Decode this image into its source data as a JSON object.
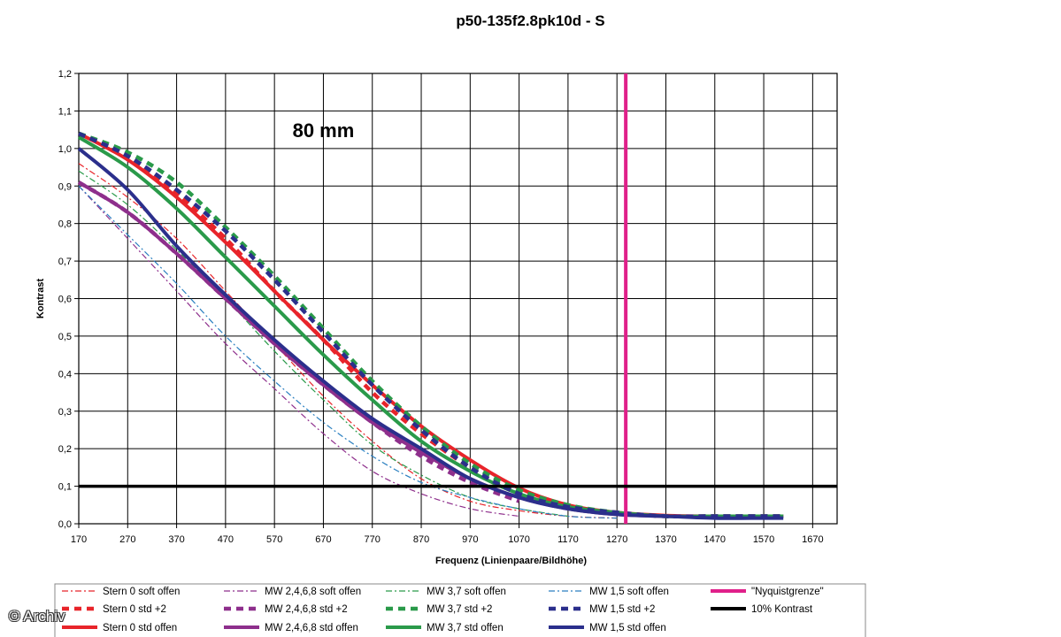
{
  "chart_data": {
    "type": "line",
    "title": "p50-135f2.8pk10d - S",
    "xlabel": "Frequenz (Linienpaare/Bildhöhe)",
    "ylabel": "Kontrast",
    "xlim": [
      170,
      1720
    ],
    "ylim": [
      0,
      1.2
    ],
    "xticks": [
      170,
      270,
      370,
      470,
      570,
      670,
      770,
      870,
      970,
      1070,
      1170,
      1270,
      1370,
      1470,
      1570,
      1670
    ],
    "yticks": [
      "0,0",
      "0,1",
      "0,2",
      "0,3",
      "0,4",
      "0,5",
      "0,6",
      "0,7",
      "0,8",
      "0,9",
      "1,0",
      "1,1",
      "1,2"
    ],
    "grid": true,
    "annotation": "80 mm",
    "series": [
      {
        "name": "Stern 0 soft offen",
        "color": "#e8242a",
        "style": "dashdot-thin",
        "x": [
          170,
          270,
          370,
          470,
          570,
          670,
          770,
          870,
          970,
          1070,
          1170,
          1270
        ],
        "y": [
          0.96,
          0.87,
          0.76,
          0.62,
          0.48,
          0.34,
          0.22,
          0.12,
          0.06,
          0.035,
          0.02,
          0.015
        ]
      },
      {
        "name": "Stern 0 std +2",
        "color": "#e8242a",
        "style": "dashed-thick",
        "x": [
          170,
          270,
          370,
          470,
          570,
          670,
          770,
          870,
          970,
          1070,
          1170,
          1270,
          1370,
          1470,
          1570,
          1610
        ],
        "y": [
          1.04,
          0.98,
          0.88,
          0.76,
          0.62,
          0.49,
          0.35,
          0.24,
          0.15,
          0.08,
          0.045,
          0.03,
          0.02,
          0.02,
          0.02,
          0.02
        ]
      },
      {
        "name": "Stern 0 std offen",
        "color": "#e8242a",
        "style": "solid-thick",
        "x": [
          170,
          270,
          370,
          470,
          570,
          670,
          770,
          870,
          970,
          1070,
          1170,
          1270,
          1370,
          1470,
          1570,
          1610
        ],
        "y": [
          1.04,
          0.97,
          0.87,
          0.75,
          0.62,
          0.49,
          0.37,
          0.26,
          0.17,
          0.095,
          0.05,
          0.03,
          0.022,
          0.02,
          0.02,
          0.02
        ]
      },
      {
        "name": "MW 2,4,6,8 soft offen",
        "color": "#8e2f8c",
        "style": "dashdot-thin",
        "x": [
          170,
          270,
          370,
          470,
          570,
          670,
          770,
          870,
          970,
          1070
        ],
        "y": [
          0.9,
          0.76,
          0.62,
          0.48,
          0.36,
          0.24,
          0.14,
          0.08,
          0.04,
          0.02
        ]
      },
      {
        "name": "MW 2,4,6,8 std +2",
        "color": "#8e2f8c",
        "style": "dashed-thick",
        "x": [
          170,
          270,
          370,
          470,
          570,
          670,
          770,
          870,
          970,
          1070
        ],
        "y": [
          0.91,
          0.83,
          0.72,
          0.6,
          0.48,
          0.37,
          0.27,
          0.18,
          0.11,
          0.06
        ]
      },
      {
        "name": "MW 2,4,6,8 std offen",
        "color": "#8e2f8c",
        "style": "solid-thick",
        "x": [
          170,
          270,
          370,
          470,
          570,
          670,
          770,
          870,
          970,
          1070,
          1170,
          1270,
          1370,
          1470,
          1570,
          1610
        ],
        "y": [
          0.91,
          0.83,
          0.72,
          0.6,
          0.48,
          0.37,
          0.27,
          0.19,
          0.12,
          0.07,
          0.04,
          0.025,
          0.02,
          0.02,
          0.02,
          0.02
        ]
      },
      {
        "name": "MW 3,7 soft offen",
        "color": "#2a9a4a",
        "style": "dashdot-thin",
        "x": [
          170,
          270,
          370,
          470,
          570,
          670,
          770,
          870,
          970,
          1070,
          1170
        ],
        "y": [
          0.94,
          0.85,
          0.73,
          0.6,
          0.46,
          0.33,
          0.21,
          0.13,
          0.07,
          0.04,
          0.02
        ]
      },
      {
        "name": "MW 3,7 std +2",
        "color": "#2a9a4a",
        "style": "dashed-thick",
        "x": [
          170,
          270,
          370,
          470,
          570,
          670,
          770,
          870,
          970,
          1070,
          1170,
          1270,
          1370,
          1470,
          1570,
          1610
        ],
        "y": [
          1.04,
          0.99,
          0.91,
          0.79,
          0.66,
          0.52,
          0.38,
          0.26,
          0.16,
          0.09,
          0.05,
          0.03,
          0.02,
          0.02,
          0.02,
          0.02
        ]
      },
      {
        "name": "MW 3,7 std offen",
        "color": "#2a9a4a",
        "style": "solid-thick",
        "x": [
          170,
          270,
          370,
          470,
          570,
          670,
          770,
          870,
          970,
          1070,
          1170,
          1270,
          1370,
          1470,
          1570,
          1610
        ],
        "y": [
          1.03,
          0.95,
          0.84,
          0.71,
          0.58,
          0.45,
          0.33,
          0.22,
          0.14,
          0.08,
          0.045,
          0.03,
          0.02,
          0.02,
          0.02,
          0.02
        ]
      },
      {
        "name": "MW 1,5 soft offen",
        "color": "#2a7fc0",
        "style": "dashdot-thin",
        "x": [
          170,
          270,
          370,
          470,
          570,
          670,
          770,
          870,
          970,
          1070,
          1170,
          1270
        ],
        "y": [
          0.9,
          0.77,
          0.64,
          0.5,
          0.38,
          0.27,
          0.18,
          0.11,
          0.07,
          0.04,
          0.02,
          0.015
        ]
      },
      {
        "name": "MW 1,5 std +2",
        "color": "#2b2f8c",
        "style": "dashed-thick",
        "x": [
          170,
          270,
          370,
          470,
          570,
          670,
          770,
          870,
          970,
          1070,
          1170,
          1270,
          1370,
          1470,
          1570,
          1610
        ],
        "y": [
          1.04,
          0.98,
          0.89,
          0.78,
          0.65,
          0.51,
          0.37,
          0.25,
          0.15,
          0.08,
          0.045,
          0.03,
          0.02,
          0.02,
          0.02,
          0.02
        ]
      },
      {
        "name": "MW 1,5 std offen",
        "color": "#2b2f8c",
        "style": "solid-thick",
        "x": [
          170,
          270,
          370,
          470,
          570,
          670,
          770,
          870,
          970,
          1070,
          1170,
          1270,
          1370,
          1470,
          1570,
          1610
        ],
        "y": [
          1.0,
          0.89,
          0.74,
          0.61,
          0.49,
          0.38,
          0.28,
          0.2,
          0.12,
          0.07,
          0.04,
          0.025,
          0.02,
          0.015,
          0.015,
          0.015
        ]
      }
    ],
    "reference_lines": [
      {
        "name": "\"Nyquistgrenze\"",
        "color": "#e0208a",
        "orientation": "vertical",
        "value": 1288
      },
      {
        "name": "10% Kontrast",
        "color": "#000000",
        "orientation": "horizontal",
        "value": 0.1
      }
    ],
    "legend_placement": "bottom"
  },
  "watermark": "© Archiv"
}
